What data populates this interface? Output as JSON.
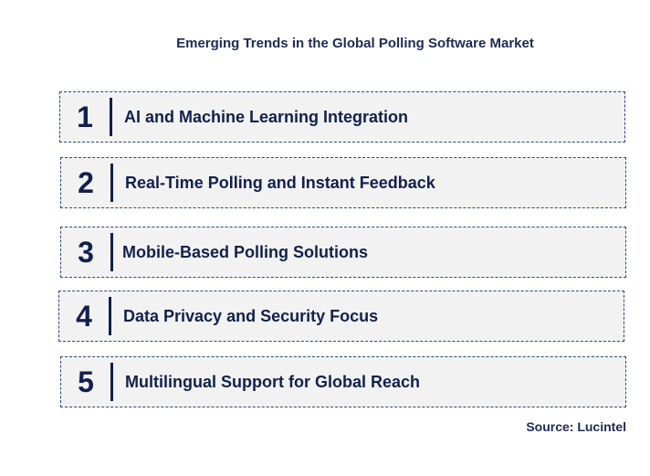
{
  "title": "Emerging Trends in the Global Polling Software Market",
  "trends": [
    {
      "number": "1",
      "label": "AI and Machine Learning Integration"
    },
    {
      "number": "2",
      "label": "Real-Time Polling and Instant Feedback"
    },
    {
      "number": "3",
      "label": "Mobile-Based Polling Solutions"
    },
    {
      "number": "4",
      "label": "Data Privacy and Security Focus"
    },
    {
      "number": "5",
      "label": "Multilingual Support for Global Reach"
    }
  ],
  "source": "Source: Lucintel",
  "colors": {
    "text": "#12204d",
    "border": "#2e4a7a",
    "box_fill": "#f2f2f2"
  }
}
